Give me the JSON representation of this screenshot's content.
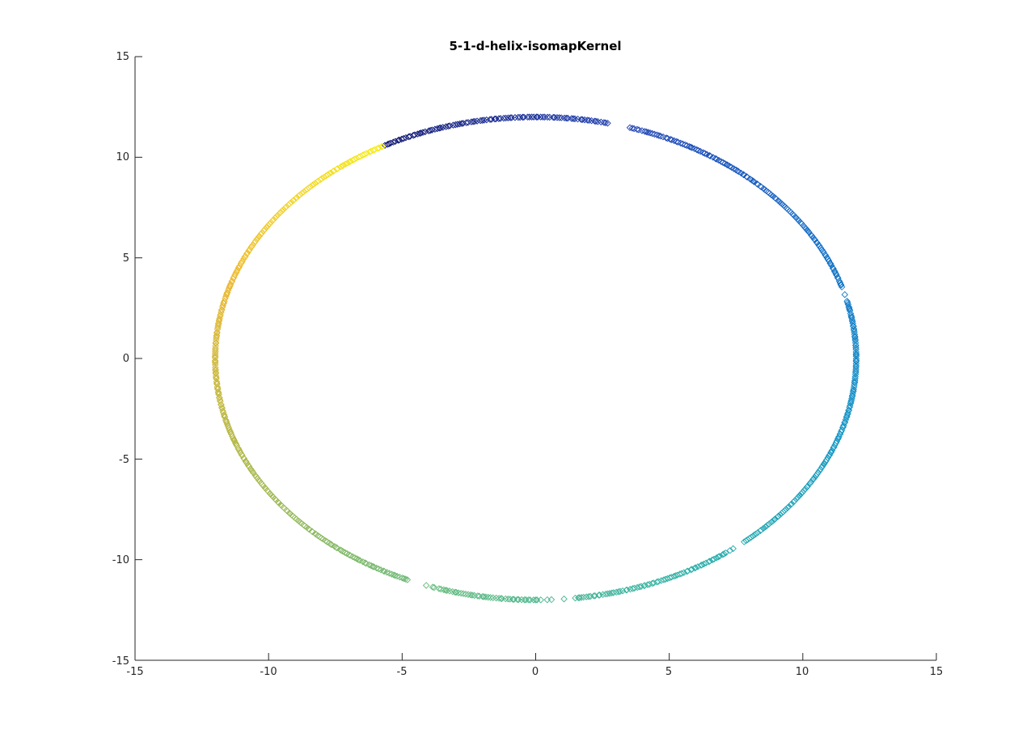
{
  "chart_data": {
    "type": "scatter",
    "title": "5-1-d-helix-isomapKernel",
    "xlabel": "",
    "ylabel": "",
    "xlim": [
      -15,
      15
    ],
    "ylim": [
      -15,
      15
    ],
    "x_ticks": [
      "-15",
      "-10",
      "-5",
      "0",
      "5",
      "10",
      "15"
    ],
    "y_ticks": [
      "15",
      "10",
      "5",
      "0",
      "-5",
      "-10",
      "-15"
    ],
    "grid": false,
    "legend": "none",
    "marker": "diamond-open",
    "colormap": "parula",
    "curve": {
      "shape": "ellipse",
      "center": [
        0,
        0
      ],
      "radius_x": 12,
      "radius_y": 12,
      "n_points": 860,
      "color_start_angle_deg": 118,
      "color_direction": "clockwise",
      "sparse_angle_ranges_deg": [
        [
          73,
          77
        ],
        [
          14,
          17
        ],
        [
          -55,
          -50
        ],
        [
          -89,
          -83
        ],
        [
          -113,
          -108
        ]
      ]
    },
    "colors": {
      "axis": "#262626",
      "background": "#ffffff"
    }
  }
}
